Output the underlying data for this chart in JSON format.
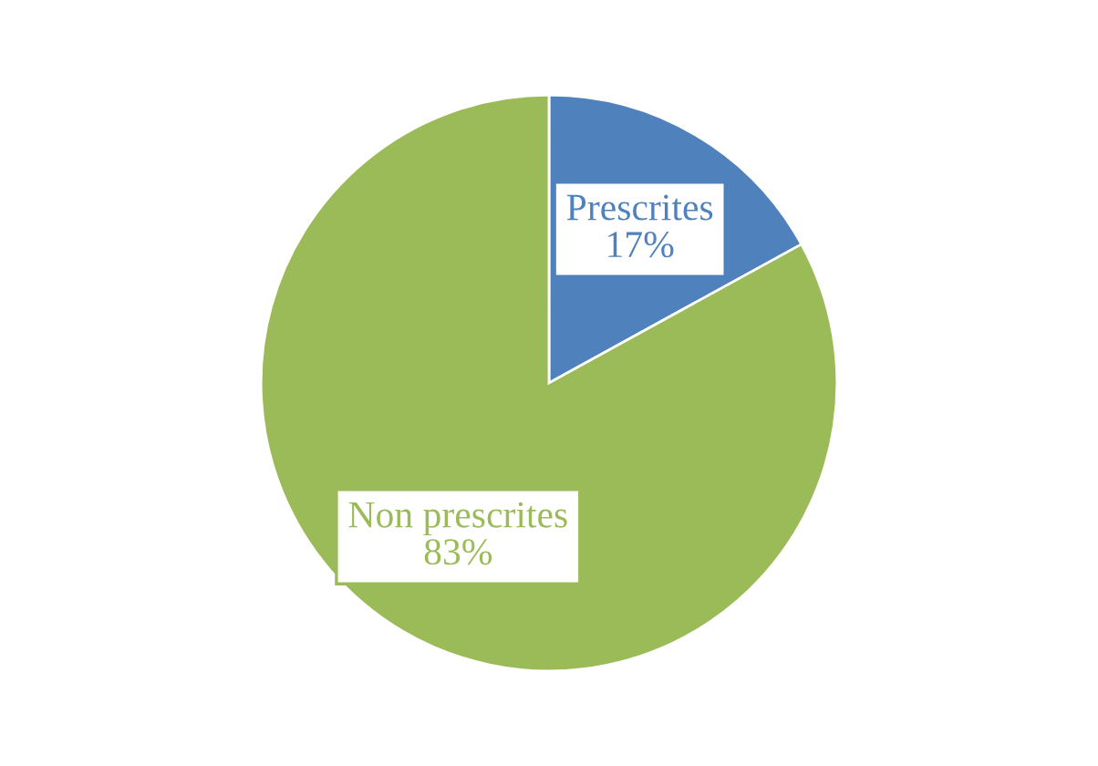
{
  "chart_data": {
    "type": "pie",
    "categories": [
      "Prescrites",
      "Non prescrites"
    ],
    "values": [
      17,
      83
    ],
    "value_labels": [
      "17%",
      "83%"
    ],
    "colors": [
      "#4f81bd",
      "#9bbb59"
    ]
  }
}
